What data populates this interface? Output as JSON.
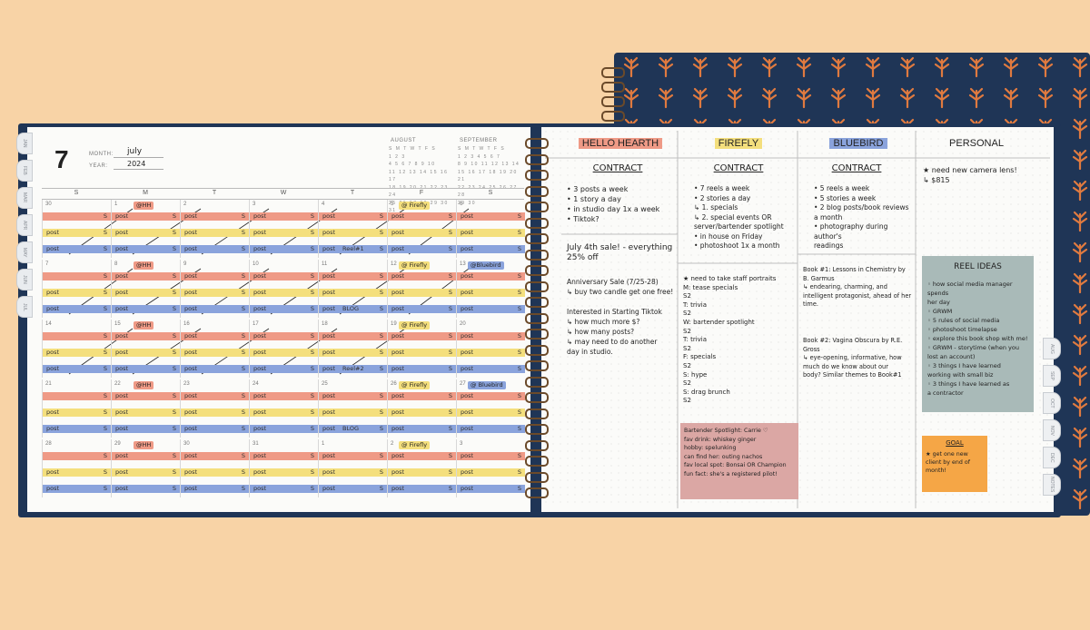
{
  "planner": {
    "month_number": "7",
    "month_label": "MONTH:",
    "month_value": "july",
    "year_label": "YEAR:",
    "year_value": "2024",
    "mini_cal_1": "AUGUST",
    "mini_cal_2": "SEPTEMBER",
    "mini_cal_1_rows": [
      "S M T W T F S",
      "1 2 3",
      "4 5 6 7 8 9 10",
      "11 12 13 14 15 16 17",
      "18 19 20 21 22 23 24",
      "25 26 27 28 29 30 31"
    ],
    "mini_cal_2_rows": [
      "S M T W T F S",
      "1 2 3 4 5 6 7",
      "8 9 10 11 12 13 14",
      "15 16 17 18 19 20 21",
      "22 23 24 25 26 27 28",
      "29 30"
    ],
    "day_headers": [
      "S",
      "M",
      "T",
      "W",
      "T",
      "F",
      "S"
    ],
    "left_tabs": [
      "JAN",
      "FEB",
      "MAR",
      "APR",
      "MAY",
      "JUN",
      "JUL"
    ],
    "right_tabs": [
      "AUG",
      "SEP",
      "OCT",
      "NOV",
      "DEC",
      "NOTES"
    ]
  },
  "calendar_weeks": [
    {
      "days": [
        "30",
        "1",
        "2",
        "3",
        "4",
        "5",
        "6"
      ],
      "tags": {
        "1": "@HH",
        "5": "@ Firefly"
      }
    },
    {
      "days": [
        "7",
        "8",
        "9",
        "10",
        "11",
        "12",
        "13"
      ],
      "tags": {
        "1": "@HH",
        "5": "@ Firefly",
        "6": "@Bluebird"
      }
    },
    {
      "days": [
        "14",
        "15",
        "16",
        "17",
        "18",
        "19",
        "20"
      ],
      "tags": {
        "1": "@HH",
        "5": "@ Firefly"
      }
    },
    {
      "days": [
        "21",
        "22",
        "23",
        "24",
        "25",
        "26",
        "27"
      ],
      "tags": {
        "1": "@HH",
        "5": "@ Firefly",
        "6": "@ Bluebird"
      }
    },
    {
      "days": [
        "28",
        "29",
        "30",
        "31",
        "1",
        "2",
        "3"
      ],
      "tags": {
        "1": "@HH",
        "5": "@ Firefly"
      }
    }
  ],
  "stripe_text": {
    "post": "post",
    "s": "S",
    "blog": "BLOG",
    "reel1": "Reel#1",
    "reel2": "Reel#2"
  },
  "columns": [
    {
      "header": "HELLO HEARTH",
      "contract": "CONTRACT",
      "color": "#ef9a86"
    },
    {
      "header": "FIREFLY",
      "contract": "CONTRACT",
      "color": "#f4df7d"
    },
    {
      "header": "BLUEBIRD",
      "contract": "CONTRACT",
      "color": "#8aa3dc"
    },
    {
      "header": "PERSONAL",
      "contract": "",
      "color": ""
    }
  ],
  "notes": {
    "hh_contract": "• 3 posts a week\n• 1 story a day\n• in studio day  1x a week\n• Tiktok?",
    "hh_sale": "July 4th sale! - everything\n25% off",
    "hh_anniv": "Anniversary Sale (7/25-28)\n ↳ buy two candle get one free!",
    "hh_tiktok": "Interested in Starting Tiktok\n ↳ how much more $?\n ↳ how many posts?\n ↳ may need to do another\n   day in studio.",
    "ff_contract": "• 7 reels a week\n• 2 stories a day\n   ↳ 1. specials\n   ↳ 2. special events OR\n       server/bartender spotlight\n• in house on Friday\n• photoshoot 1x a month",
    "ff_staff": "★ need to take staff portraits\nM: tease specials\n   S2\nT: trivia\n   S2\nW: bartender spotlight\n   S2\nT: trivia\n   S2\nF: specials\n   S2\nS: hype\n   S2\nS: drag brunch\n   S2",
    "ff_sticky": "Bartender Spotlight: Carrie ♡\nfav drink: whiskey ginger\nhobby: spelunking\ncan find her: outing nachos\nfav local spot: Bonsai OR Champion\nfun fact: she's a registered pilot!",
    "bb_contract": "• 5 reels a week\n• 5 stories a week\n• 2 blog posts/book reviews\n   a month\n• photography during author's\n   readings",
    "bb_book1": "Book #1: Lessons in Chemistry by\n             B. Garmus\n  ↳ endearing, charming, and\n     intelligent protagonist, ahead of her\n     time.",
    "bb_book2": "Book #2: Vagina Obscura by R.E.\n             Gross\n  ↳ eye-opening, informative, how\n     much do we know about our\n     body? Similar themes to Book#1",
    "personal_note": "★ need new camera lens!\n   ↳ $815",
    "reel_title": "REEL IDEAS",
    "reel_list": "◦ how social media manager spends\n   her day\n◦ GRWM\n◦ 5 rules of social media\n◦ photoshoot timelapse\n◦ explore this book shop with me!\n◦ GRWM - storytime (when you\n   lost an account)\n◦ 3 things I have learned\n   working with small biz\n◦ 3 things I have learned as\n   a contractor",
    "goal_title": "GOAL",
    "goal_text": "★ get one new\n   client by end of\n   month!"
  },
  "colors": {
    "cover": "#1f3556",
    "background": "#f8d3a6",
    "hello_hearth": "#ef9a86",
    "firefly": "#f4df7d",
    "bluebird": "#8aa3dc",
    "reel_sticky": "#a9bab8",
    "goal_sticky": "#f5a646",
    "ff_sticky": "#dba7a4"
  }
}
